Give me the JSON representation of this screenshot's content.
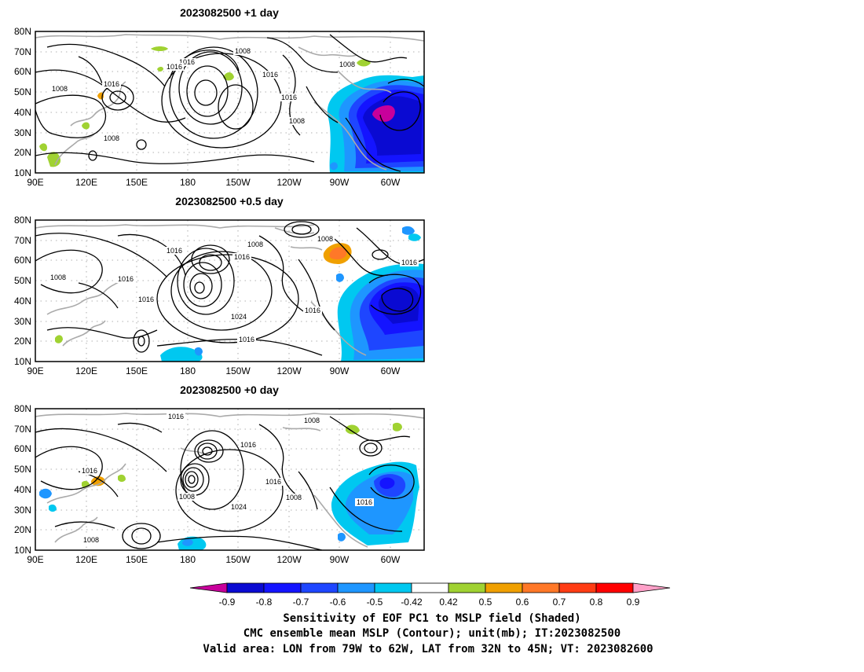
{
  "panels": [
    {
      "title": "2023082500  +1  day"
    },
    {
      "title": "2023082500  +0.5  day"
    },
    {
      "title": "2023082500  +0  day"
    }
  ],
  "axes": {
    "lat_labels": [
      "80N",
      "70N",
      "60N",
      "50N",
      "40N",
      "30N",
      "20N",
      "10N"
    ],
    "lon_labels": [
      "90E",
      "120E",
      "150E",
      "180",
      "150W",
      "120W",
      "90W",
      "60W"
    ]
  },
  "contour_labels": {
    "p1": [
      "1008",
      "1016",
      "1016",
      "1008",
      "1016",
      "1016",
      "1008",
      "1016",
      "1008",
      "1008"
    ],
    "p2": [
      "1008",
      "1016",
      "1008",
      "1016",
      "1016",
      "1016",
      "1024",
      "1016",
      "1016",
      "1008",
      "1016"
    ],
    "p3": [
      "1016",
      "1008",
      "1016",
      "1016",
      "1016",
      "1008",
      "1024",
      "1008",
      "1016",
      "1008"
    ]
  },
  "colorbar": {
    "labels": [
      "-0.9",
      "-0.8",
      "-0.7",
      "-0.6",
      "-0.5",
      "-0.42",
      "0.42",
      "0.5",
      "0.6",
      "0.7",
      "0.8",
      "0.9"
    ],
    "colors": [
      "#c8009b",
      "#0a0ad2",
      "#1414ff",
      "#1e46ff",
      "#1e96ff",
      "#00c8f0",
      "#ffffff",
      "#a0d232",
      "#f0a000",
      "#ff7828",
      "#ff3c14",
      "#ff0000",
      "#ffa0c8"
    ]
  },
  "caption": [
    "Sensitivity of EOF PC1 to MSLP field (Shaded)",
    "CMC ensemble mean MSLP (Contour); unit(mb); IT:2023082500",
    "Valid area: LON from 79W to 62W, LAT from 32N to 45N; VT: 2023082600"
  ]
}
